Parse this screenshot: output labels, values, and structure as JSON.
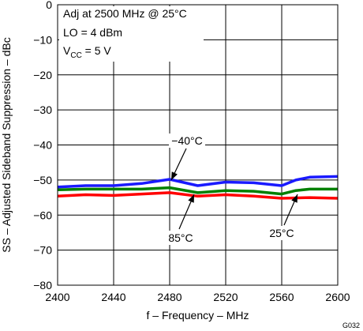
{
  "chart_data": {
    "type": "line",
    "xlabel": "f – Frequency – MHz",
    "ylabel": "SS – Adjusted Sideband Suppression – dBc",
    "xlim": [
      2400,
      2600
    ],
    "ylim": [
      -80,
      0
    ],
    "xticks": [
      2400,
      2440,
      2480,
      2520,
      2560,
      2600
    ],
    "yticks": [
      0,
      -10,
      -20,
      -30,
      -40,
      -50,
      -60,
      -70,
      -80
    ],
    "grid": true,
    "annotations": {
      "line1": "Adj at 2500 MHz @ 25°C",
      "line2": "LO = 4 dBm",
      "line3_main": "V",
      "line3_sub": "CC",
      "line3_rest": " =  5 V"
    },
    "figure_id": "G032",
    "series": [
      {
        "name": "−40°C",
        "color": "#1a1aff",
        "x": [
          2400,
          2420,
          2440,
          2460,
          2480,
          2500,
          2520,
          2540,
          2560,
          2570,
          2580,
          2600
        ],
        "y": [
          -52.0,
          -51.6,
          -51.6,
          -51.0,
          -49.8,
          -51.6,
          -50.6,
          -50.8,
          -51.6,
          -50.0,
          -49.2,
          -49.0
        ]
      },
      {
        "name": "85°C",
        "color": "#008000",
        "x": [
          2400,
          2420,
          2440,
          2460,
          2480,
          2500,
          2520,
          2540,
          2560,
          2570,
          2580,
          2600
        ],
        "y": [
          -52.8,
          -52.6,
          -52.6,
          -52.6,
          -52.2,
          -53.6,
          -53.0,
          -53.2,
          -54.0,
          -53.0,
          -52.6,
          -52.6
        ]
      },
      {
        "name": "25°C",
        "color": "#ff0000",
        "x": [
          2400,
          2420,
          2440,
          2460,
          2480,
          2500,
          2520,
          2540,
          2560,
          2580,
          2600
        ],
        "y": [
          -54.6,
          -54.2,
          -54.4,
          -54.0,
          -53.6,
          -54.6,
          -54.2,
          -54.6,
          -55.2,
          -55.0,
          -55.2
        ]
      }
    ],
    "labels": {
      "minus40": "−40°C",
      "plus85": "85°C",
      "plus25": "25°C"
    }
  }
}
